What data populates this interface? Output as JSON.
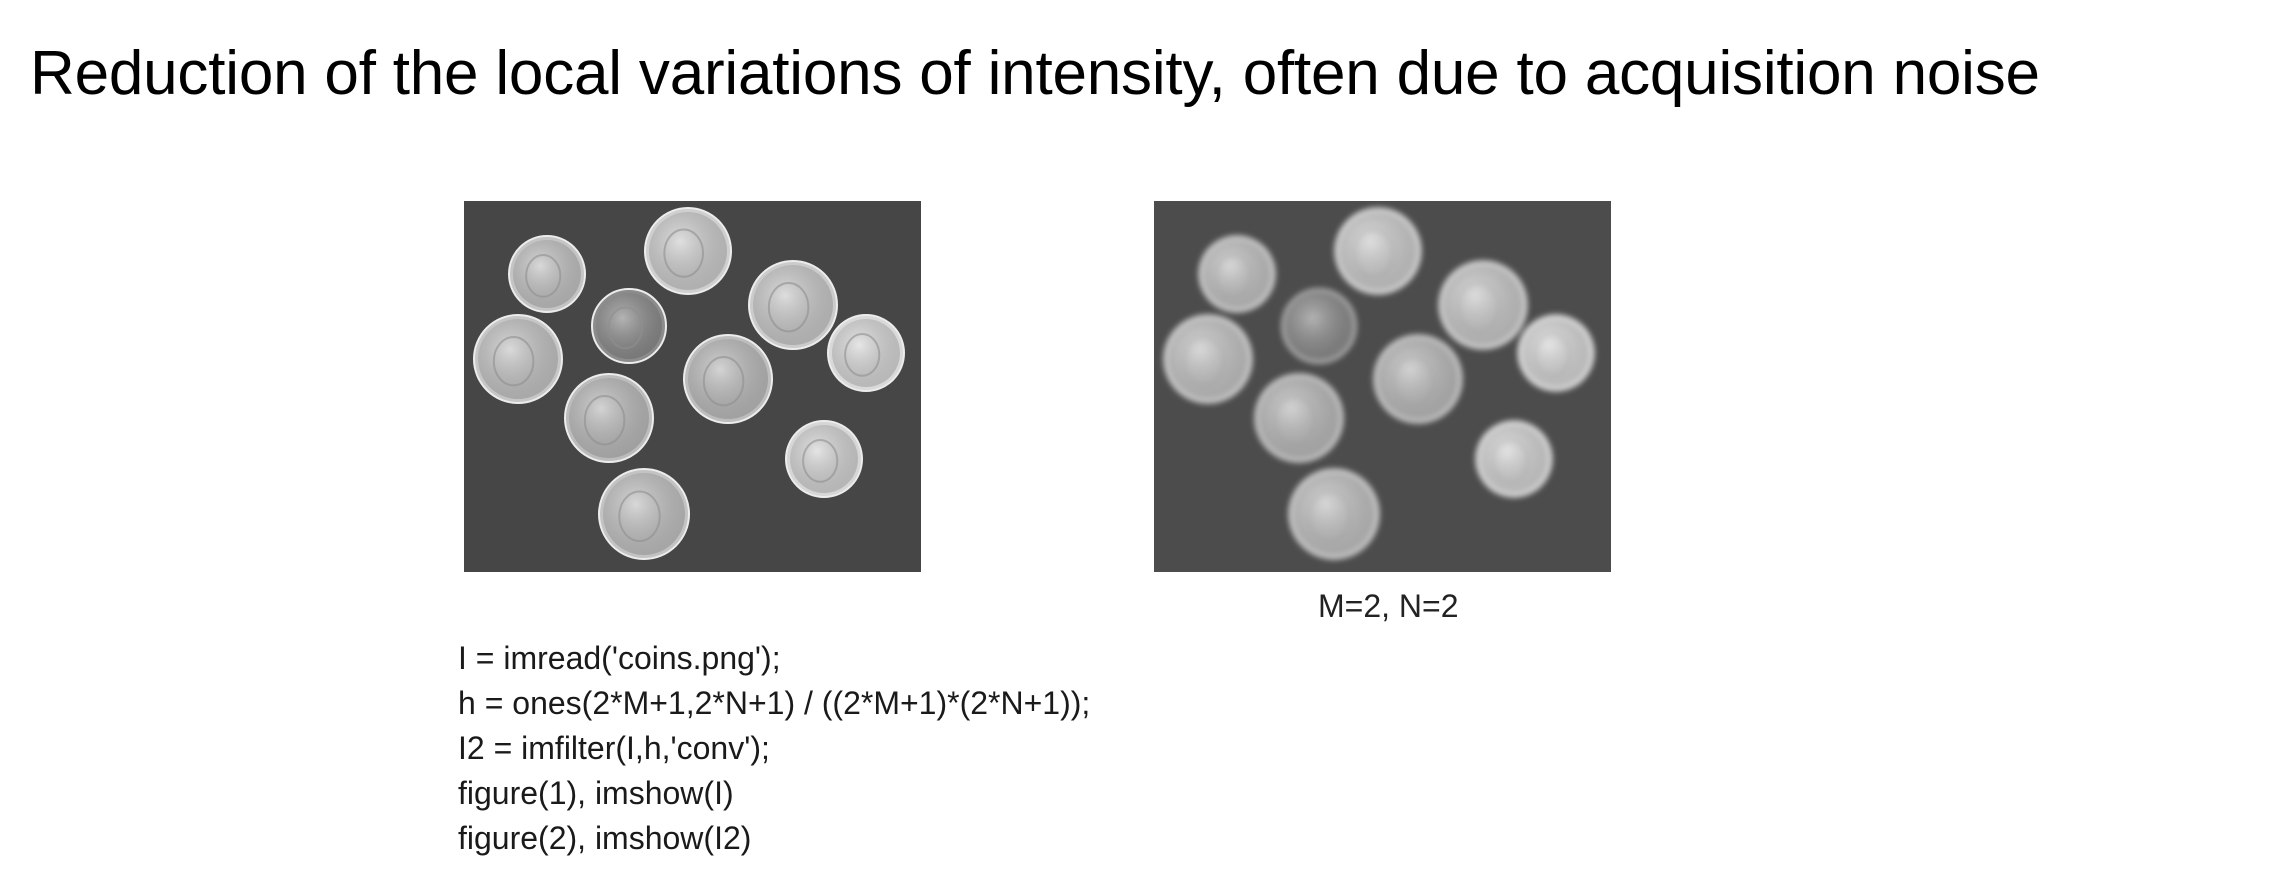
{
  "slide": {
    "title": "Reduction of the local variations of intensity, often due to acquisition noise"
  },
  "images": {
    "original": {
      "description_icon": "coins-image-original"
    },
    "filtered": {
      "description_icon": "coins-image-blurred",
      "caption": "M=2, N=2"
    }
  },
  "code": {
    "lines": [
      "I = imread('coins.png');",
      "h = ones(2*M+1,2*N+1) / ((2*M+1)*(2*N+1));",
      "I2 = imfilter(I,h,'conv');",
      "figure(1), imshow(I)",
      "figure(2), imshow(I2)"
    ]
  },
  "colors": {
    "background": "#ffffff",
    "image_background": "#4a4a4a",
    "coin_light": "#d8d8d8",
    "coin_dark": "#8a8a8a"
  }
}
